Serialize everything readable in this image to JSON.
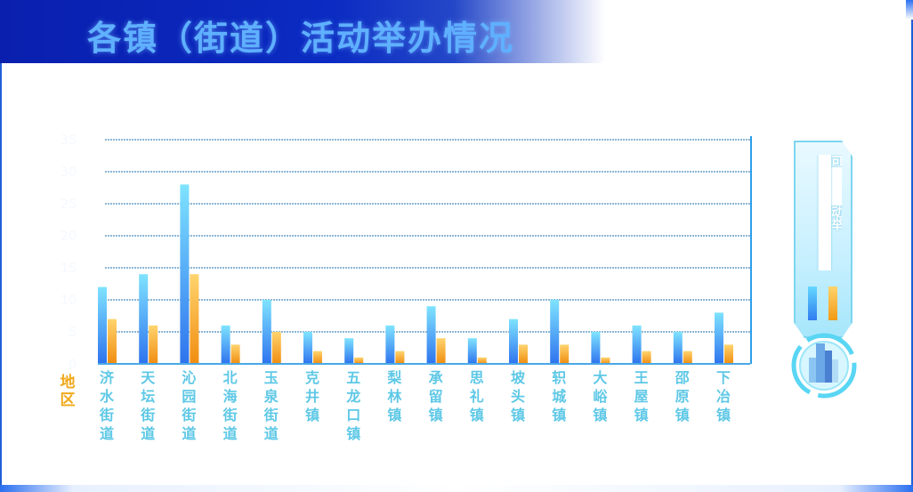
{
  "page": {
    "title": "各镇（街道）活动举办情况"
  },
  "legend": {
    "text": "可▇▇▇▇动举▇▇▇▇▇▇▇▇▇▇▇▇▇▇▇▇▇▇▇▇▇▇▇▇▇▇▇▇▇▇",
    "series_colors": [
      "#3f9cf5",
      "#f2a21e"
    ]
  },
  "chart_data": {
    "type": "bar",
    "title": "各镇（街道）活动举办情况",
    "xlabel": "地区",
    "ylabel": "",
    "ylim": [
      0,
      35
    ],
    "yticks": [
      0,
      5,
      10,
      15,
      20,
      25,
      30,
      35
    ],
    "grid": true,
    "categories": [
      "济水街道",
      "天坛街道",
      "沁园街道",
      "北海街道",
      "玉泉街道",
      "克井镇",
      "五龙口镇",
      "梨林镇",
      "承留镇",
      "思礼镇",
      "坡头镇",
      "轵城镇",
      "大峪镇",
      "王屋镇",
      "邵原镇",
      "下冶镇"
    ],
    "series": [
      {
        "color": "#3f9cf5",
        "values": [
          12,
          14,
          28,
          6,
          10,
          5,
          4,
          6,
          9,
          4,
          7,
          10,
          5,
          6,
          5,
          8
        ]
      },
      {
        "color": "#f2a21e",
        "values": [
          7,
          6,
          14,
          3,
          5,
          2,
          1,
          2,
          4,
          1,
          3,
          3,
          1,
          2,
          2,
          3
        ]
      }
    ]
  }
}
